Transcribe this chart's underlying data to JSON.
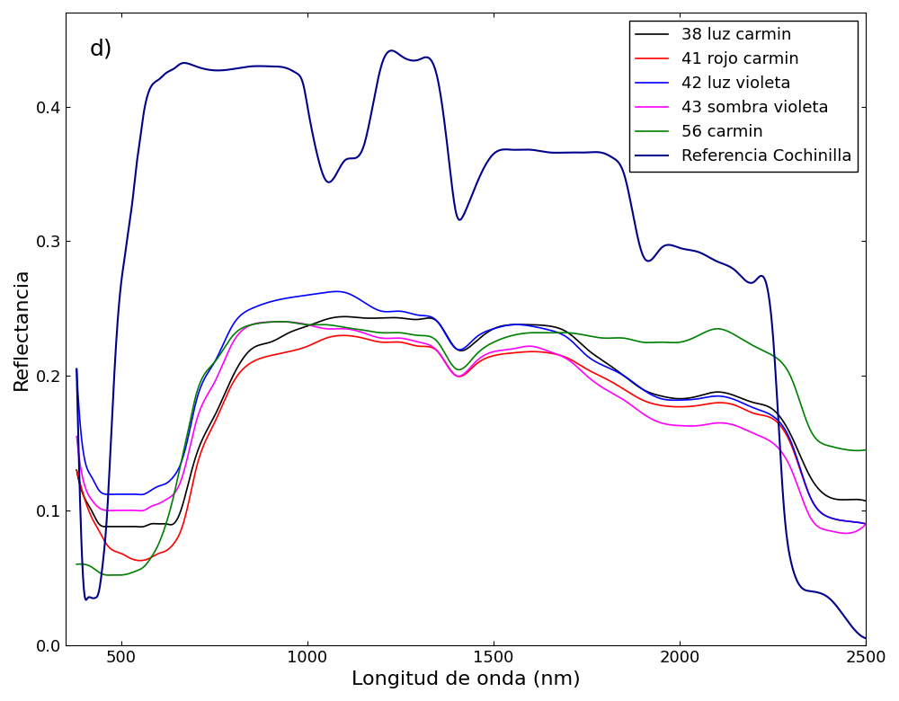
{
  "title": "d)",
  "xlabel": "Longitud de onda (nm)",
  "ylabel": "Reflectancia",
  "xlim": [
    350,
    2500
  ],
  "ylim": [
    0,
    0.47
  ],
  "yticks": [
    0.0,
    0.1,
    0.2,
    0.3,
    0.4
  ],
  "xticks": [
    500,
    1000,
    1500,
    2000,
    2500
  ],
  "legend_entries": [
    "38 luz carmin",
    "41 rojo carmin",
    "42 luz violeta",
    "43 sombra violeta",
    "56 carmin",
    "Referencia Cochinilla"
  ],
  "colors": [
    "#000000",
    "#ff0000",
    "#0000ff",
    "#ff00ff",
    "#008000",
    "#00008b"
  ],
  "linewidths": [
    1.2,
    1.2,
    1.2,
    1.2,
    1.2,
    1.5
  ],
  "background_color": "#ffffff",
  "label_fontsize": 16,
  "tick_fontsize": 13,
  "legend_fontsize": 13,
  "curve_38": {
    "x": [
      380,
      400,
      420,
      440,
      460,
      480,
      500,
      520,
      540,
      560,
      580,
      600,
      620,
      640,
      660,
      680,
      700,
      750,
      800,
      850,
      900,
      950,
      1000,
      1050,
      1100,
      1150,
      1200,
      1250,
      1300,
      1350,
      1400,
      1450,
      1500,
      1550,
      1600,
      1650,
      1700,
      1750,
      1800,
      1850,
      1900,
      1950,
      2000,
      2050,
      2100,
      2150,
      2200,
      2250,
      2300,
      2350,
      2400,
      2450,
      2500
    ],
    "y": [
      0.13,
      0.11,
      0.1,
      0.09,
      0.088,
      0.088,
      0.088,
      0.088,
      0.088,
      0.088,
      0.09,
      0.09,
      0.09,
      0.09,
      0.1,
      0.12,
      0.14,
      0.17,
      0.2,
      0.22,
      0.225,
      0.232,
      0.237,
      0.242,
      0.244,
      0.243,
      0.243,
      0.243,
      0.242,
      0.24,
      0.22,
      0.225,
      0.235,
      0.238,
      0.238,
      0.237,
      0.232,
      0.22,
      0.21,
      0.2,
      0.19,
      0.185,
      0.183,
      0.185,
      0.188,
      0.185,
      0.18,
      0.175,
      0.155,
      0.125,
      0.11,
      0.108,
      0.107
    ]
  },
  "curve_41": {
    "x": [
      380,
      400,
      420,
      440,
      460,
      480,
      500,
      520,
      540,
      560,
      580,
      600,
      620,
      640,
      660,
      680,
      700,
      750,
      800,
      850,
      900,
      950,
      1000,
      1050,
      1100,
      1150,
      1200,
      1250,
      1300,
      1350,
      1400,
      1450,
      1500,
      1550,
      1600,
      1650,
      1700,
      1750,
      1800,
      1850,
      1900,
      1950,
      2000,
      2050,
      2100,
      2150,
      2200,
      2250,
      2300,
      2350,
      2400,
      2450,
      2500
    ],
    "y": [
      0.13,
      0.11,
      0.095,
      0.085,
      0.075,
      0.07,
      0.068,
      0.065,
      0.063,
      0.063,
      0.065,
      0.068,
      0.07,
      0.075,
      0.085,
      0.105,
      0.13,
      0.165,
      0.195,
      0.21,
      0.215,
      0.218,
      0.222,
      0.228,
      0.23,
      0.228,
      0.225,
      0.225,
      0.222,
      0.218,
      0.2,
      0.208,
      0.215,
      0.217,
      0.218,
      0.217,
      0.213,
      0.205,
      0.198,
      0.19,
      0.182,
      0.178,
      0.177,
      0.178,
      0.18,
      0.178,
      0.172,
      0.168,
      0.148,
      0.11,
      0.095,
      0.092,
      0.09
    ]
  },
  "curve_42": {
    "x": [
      380,
      400,
      420,
      440,
      460,
      480,
      500,
      520,
      540,
      560,
      580,
      600,
      620,
      640,
      660,
      680,
      700,
      750,
      800,
      850,
      900,
      950,
      1000,
      1050,
      1100,
      1150,
      1200,
      1250,
      1300,
      1350,
      1400,
      1450,
      1500,
      1550,
      1600,
      1650,
      1700,
      1750,
      1800,
      1850,
      1900,
      1950,
      2000,
      2050,
      2100,
      2150,
      2200,
      2250,
      2300,
      2350,
      2400,
      2450,
      2500
    ],
    "y": [
      0.205,
      0.14,
      0.125,
      0.115,
      0.112,
      0.112,
      0.112,
      0.112,
      0.112,
      0.112,
      0.115,
      0.118,
      0.12,
      0.125,
      0.135,
      0.155,
      0.18,
      0.21,
      0.238,
      0.25,
      0.255,
      0.258,
      0.26,
      0.262,
      0.262,
      0.255,
      0.248,
      0.248,
      0.245,
      0.24,
      0.22,
      0.228,
      0.235,
      0.238,
      0.237,
      0.234,
      0.228,
      0.215,
      0.207,
      0.2,
      0.19,
      0.183,
      0.182,
      0.183,
      0.185,
      0.182,
      0.176,
      0.17,
      0.15,
      0.11,
      0.095,
      0.092,
      0.09
    ]
  },
  "curve_43": {
    "x": [
      380,
      400,
      420,
      440,
      460,
      480,
      500,
      520,
      540,
      560,
      580,
      600,
      620,
      640,
      660,
      680,
      700,
      750,
      800,
      850,
      900,
      950,
      1000,
      1050,
      1100,
      1150,
      1200,
      1250,
      1300,
      1350,
      1400,
      1450,
      1500,
      1550,
      1600,
      1650,
      1700,
      1750,
      1800,
      1850,
      1900,
      1950,
      2000,
      2050,
      2100,
      2150,
      2200,
      2250,
      2300,
      2350,
      2400,
      2450,
      2500
    ],
    "y": [
      0.155,
      0.12,
      0.108,
      0.102,
      0.1,
      0.1,
      0.1,
      0.1,
      0.1,
      0.1,
      0.103,
      0.105,
      0.108,
      0.112,
      0.122,
      0.142,
      0.165,
      0.195,
      0.225,
      0.238,
      0.24,
      0.24,
      0.238,
      0.235,
      0.235,
      0.232,
      0.228,
      0.228,
      0.225,
      0.218,
      0.2,
      0.21,
      0.218,
      0.22,
      0.222,
      0.218,
      0.212,
      0.2,
      0.19,
      0.182,
      0.172,
      0.165,
      0.163,
      0.163,
      0.165,
      0.163,
      0.157,
      0.15,
      0.13,
      0.095,
      0.085,
      0.083,
      0.09
    ]
  },
  "curve_56": {
    "x": [
      380,
      400,
      420,
      440,
      460,
      480,
      500,
      520,
      540,
      560,
      580,
      600,
      620,
      640,
      660,
      680,
      700,
      750,
      800,
      850,
      900,
      950,
      1000,
      1050,
      1100,
      1150,
      1200,
      1250,
      1300,
      1350,
      1400,
      1450,
      1500,
      1550,
      1600,
      1650,
      1700,
      1750,
      1800,
      1850,
      1900,
      1950,
      2000,
      2050,
      2100,
      2150,
      2200,
      2250,
      2300,
      2350,
      2400,
      2450,
      2500
    ],
    "y": [
      0.06,
      0.06,
      0.058,
      0.054,
      0.052,
      0.052,
      0.052,
      0.053,
      0.055,
      0.058,
      0.065,
      0.075,
      0.09,
      0.11,
      0.135,
      0.16,
      0.185,
      0.21,
      0.23,
      0.238,
      0.24,
      0.24,
      0.238,
      0.238,
      0.236,
      0.234,
      0.232,
      0.232,
      0.23,
      0.225,
      0.205,
      0.215,
      0.225,
      0.23,
      0.232,
      0.232,
      0.232,
      0.23,
      0.228,
      0.228,
      0.225,
      0.225,
      0.225,
      0.23,
      0.235,
      0.23,
      0.222,
      0.215,
      0.198,
      0.16,
      0.148,
      0.145,
      0.145
    ]
  },
  "curve_ref": {
    "x": [
      380,
      390,
      400,
      410,
      420,
      430,
      440,
      450,
      460,
      470,
      480,
      490,
      500,
      510,
      520,
      530,
      540,
      550,
      560,
      570,
      580,
      600,
      620,
      640,
      660,
      680,
      700,
      750,
      800,
      850,
      900,
      950,
      970,
      990,
      1000,
      1010,
      1030,
      1050,
      1100,
      1150,
      1200,
      1250,
      1300,
      1350,
      1380,
      1400,
      1420,
      1450,
      1500,
      1550,
      1600,
      1650,
      1700,
      1750,
      1800,
      1820,
      1850,
      1900,
      1950,
      2000,
      2050,
      2100,
      2150,
      2200,
      2250,
      2280,
      2300,
      2320,
      2350,
      2400,
      2450,
      2500
    ],
    "y": [
      0.205,
      0.1,
      0.04,
      0.035,
      0.035,
      0.035,
      0.04,
      0.06,
      0.09,
      0.14,
      0.195,
      0.24,
      0.27,
      0.29,
      0.31,
      0.33,
      0.355,
      0.375,
      0.395,
      0.408,
      0.415,
      0.42,
      0.425,
      0.428,
      0.432,
      0.432,
      0.43,
      0.427,
      0.428,
      0.43,
      0.43,
      0.428,
      0.425,
      0.415,
      0.4,
      0.385,
      0.36,
      0.345,
      0.36,
      0.37,
      0.432,
      0.438,
      0.435,
      0.42,
      0.36,
      0.32,
      0.32,
      0.34,
      0.365,
      0.368,
      0.368,
      0.366,
      0.366,
      0.366,
      0.365,
      0.362,
      0.35,
      0.29,
      0.295,
      0.295,
      0.292,
      0.285,
      0.278,
      0.27,
      0.23,
      0.1,
      0.06,
      0.045,
      0.04,
      0.035,
      0.018,
      0.005
    ]
  }
}
